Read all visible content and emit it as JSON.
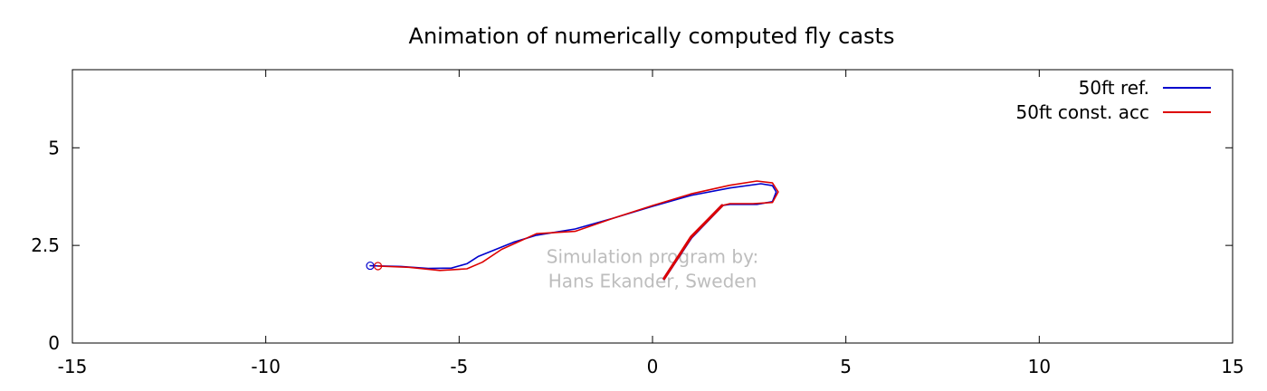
{
  "chart_data": {
    "type": "line",
    "title": "Animation of numerically computed fly casts",
    "xlabel": "",
    "ylabel": "",
    "xlim": [
      -15,
      15
    ],
    "ylim": [
      0,
      7
    ],
    "x_ticks": [
      -15,
      -10,
      -5,
      0,
      5,
      10,
      15
    ],
    "y_ticks": [
      0,
      2.5,
      5
    ],
    "x_tick_labels": [
      "-15",
      "-10",
      "-5",
      "0",
      "5",
      "10",
      "15"
    ],
    "y_tick_labels": [
      "0",
      "2.5",
      "5"
    ],
    "grid": false,
    "legend_position": "top-right",
    "watermark": [
      "Simulation program by:",
      "Hans Ekander, Sweden"
    ],
    "series": [
      {
        "name": "50ft ref.",
        "color": "#0000cc",
        "points": [
          [
            -7.3,
            1.98
          ],
          [
            -6.5,
            1.96
          ],
          [
            -5.8,
            1.91
          ],
          [
            -5.2,
            1.92
          ],
          [
            -4.8,
            2.03
          ],
          [
            -4.5,
            2.22
          ],
          [
            -3.6,
            2.58
          ],
          [
            -3.0,
            2.76
          ],
          [
            -2.0,
            2.92
          ],
          [
            -1.0,
            3.2
          ],
          [
            0.0,
            3.5
          ],
          [
            1.0,
            3.78
          ],
          [
            2.0,
            3.97
          ],
          [
            2.8,
            4.08
          ],
          [
            3.1,
            4.03
          ],
          [
            3.2,
            3.87
          ],
          [
            3.1,
            3.62
          ],
          [
            2.7,
            3.55
          ],
          [
            2.0,
            3.55
          ],
          [
            1.8,
            3.52
          ],
          [
            1.0,
            2.7
          ],
          [
            0.3,
            1.65
          ]
        ],
        "marker_start": [
          -7.3,
          1.98
        ]
      },
      {
        "name": "50ft const. acc",
        "color": "#dd0000",
        "points": [
          [
            -7.1,
            1.97
          ],
          [
            -6.3,
            1.94
          ],
          [
            -5.5,
            1.86
          ],
          [
            -4.8,
            1.9
          ],
          [
            -4.4,
            2.07
          ],
          [
            -3.9,
            2.4
          ],
          [
            -3.0,
            2.8
          ],
          [
            -2.0,
            2.86
          ],
          [
            -1.0,
            3.2
          ],
          [
            0.0,
            3.52
          ],
          [
            1.0,
            3.82
          ],
          [
            2.0,
            4.04
          ],
          [
            2.7,
            4.15
          ],
          [
            3.1,
            4.1
          ],
          [
            3.25,
            3.87
          ],
          [
            3.1,
            3.6
          ],
          [
            2.6,
            3.57
          ],
          [
            2.0,
            3.57
          ],
          [
            1.8,
            3.52
          ],
          [
            1.0,
            2.72
          ],
          [
            0.3,
            1.65
          ]
        ],
        "marker_start": [
          -7.1,
          1.97
        ]
      }
    ]
  }
}
